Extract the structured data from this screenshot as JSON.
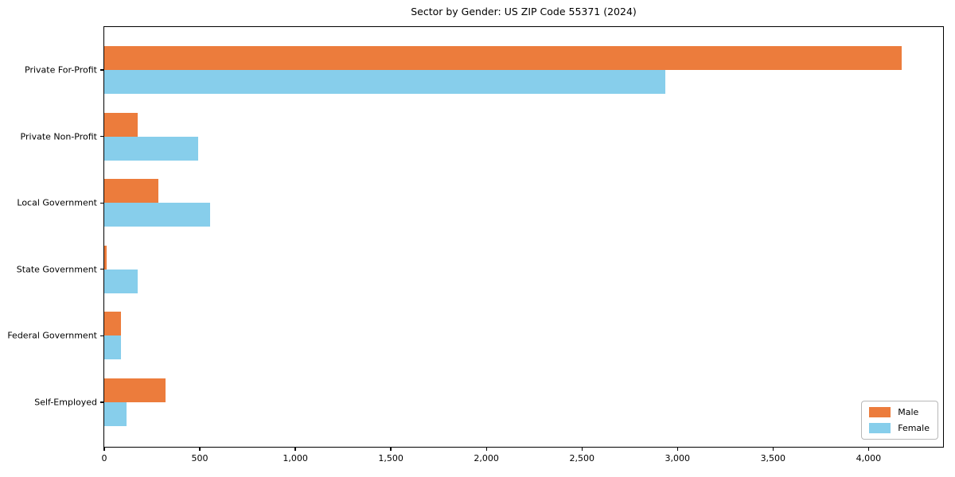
{
  "chart_data": {
    "type": "bar",
    "orientation": "horizontal",
    "title": "Sector by Gender: US ZIP Code 55371 (2024)",
    "categories": [
      "Private For-Profit",
      "Private Non-Profit",
      "Local Government",
      "State Government",
      "Federal Government",
      "Self-Employed"
    ],
    "series": [
      {
        "name": "Male",
        "color": "#ec7c3c",
        "values": [
          4175,
          173,
          285,
          12,
          86,
          322
        ]
      },
      {
        "name": "Female",
        "color": "#87ceeb",
        "values": [
          2937,
          492,
          552,
          176,
          86,
          115
        ]
      }
    ],
    "xlim": [
      0,
      4390
    ],
    "xticks": {
      "values": [
        0,
        500,
        1000,
        1500,
        2000,
        2500,
        3000,
        3500,
        4000
      ],
      "labels": [
        "0",
        "500",
        "1,000",
        "1,500",
        "2,000",
        "2,500",
        "3,000",
        "3,500",
        "4,000"
      ]
    },
    "grid": false,
    "legend": {
      "position": "lower right",
      "items": [
        "Male",
        "Female"
      ]
    }
  }
}
